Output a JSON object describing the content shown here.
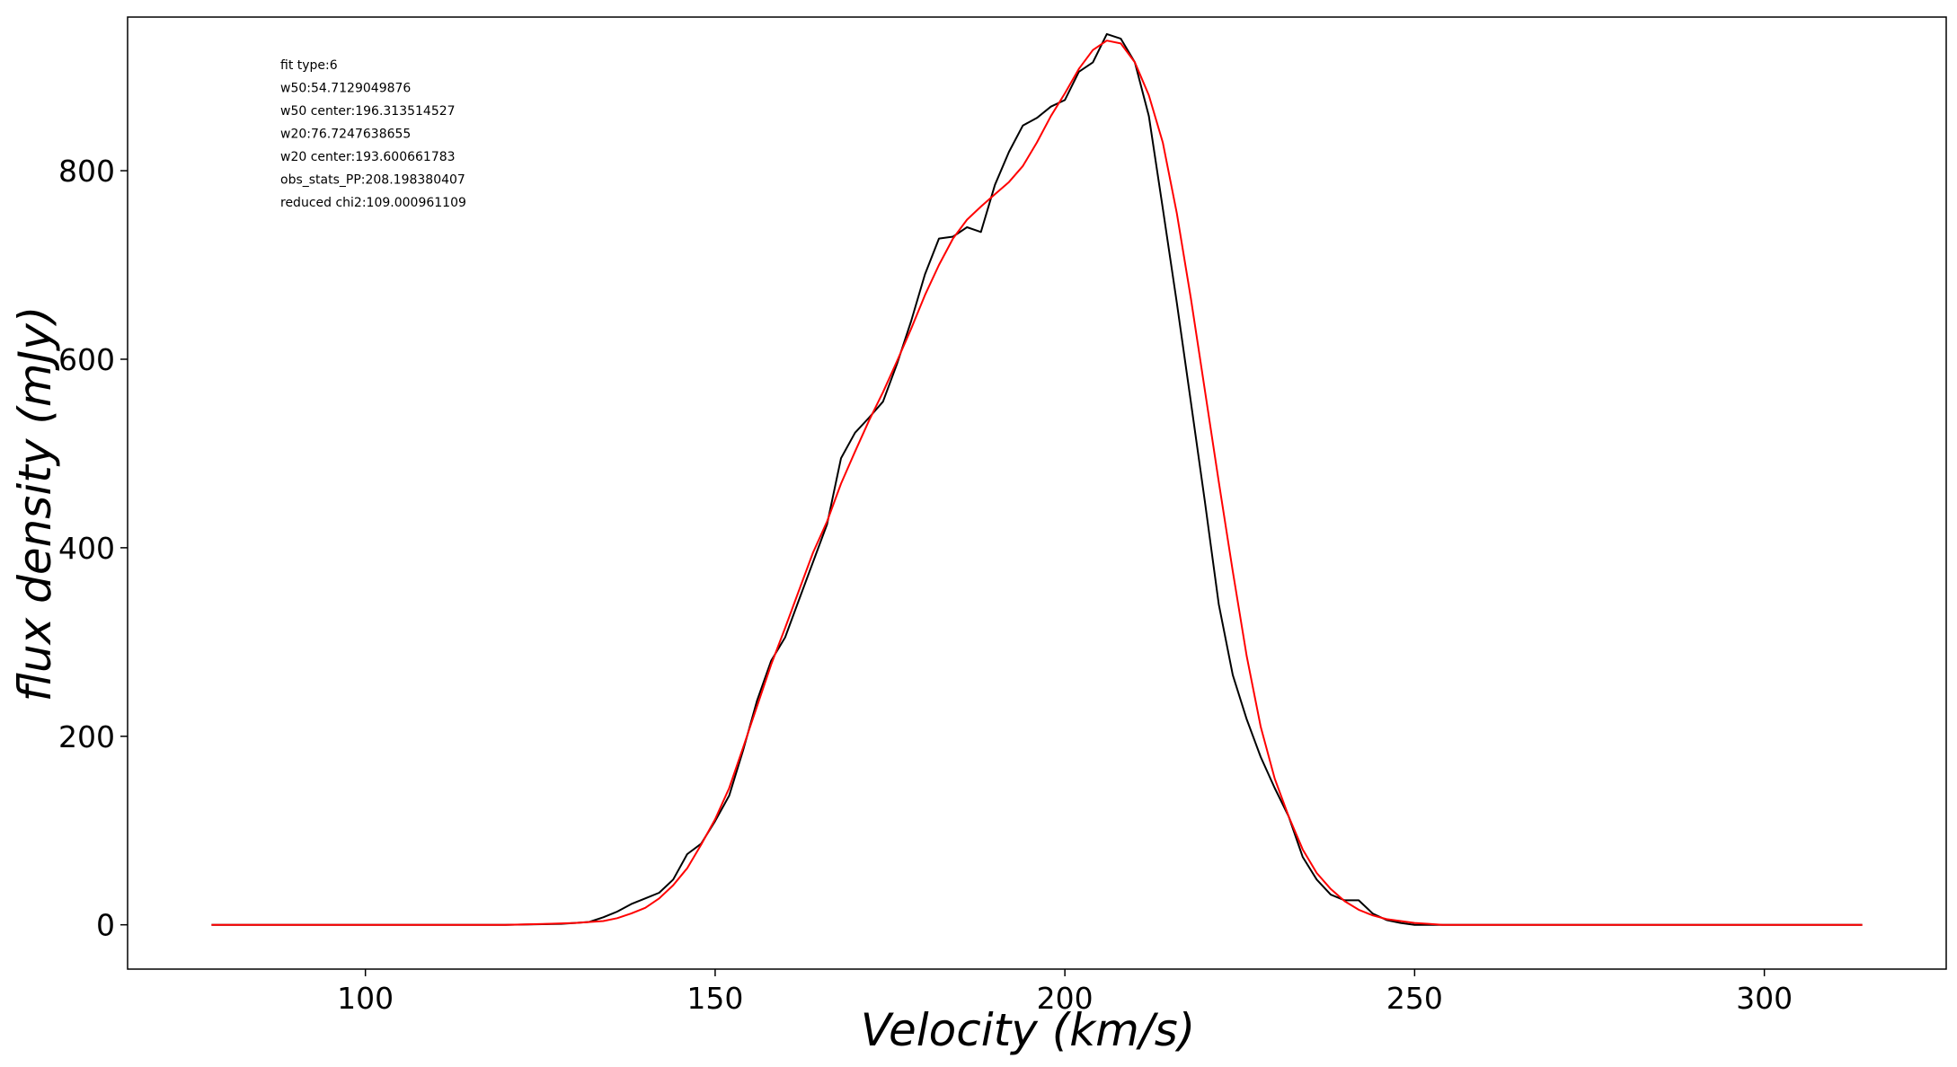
{
  "chart_data": {
    "type": "line",
    "title": "",
    "xlabel": "Velocity (km/s)",
    "ylabel": "flux density (mJy)",
    "xlim": [
      66,
      326
    ],
    "ylim": [
      -47,
      963
    ],
    "xticks": [
      100,
      150,
      200,
      250,
      300
    ],
    "yticks": [
      0,
      200,
      400,
      600,
      800
    ],
    "grid": false,
    "annotations": [
      "fit type:6",
      "w50:54.7129049876",
      "w50 center:196.313514527",
      "w20:76.7247638655",
      "w20 center:193.600661783",
      "obs_stats_PP:208.198380407",
      "reduced chi2:109.000961109"
    ],
    "series": [
      {
        "color": "#000000",
        "x": [
          78,
          100,
          120,
          128,
          130,
          132,
          134,
          136,
          138,
          140,
          142,
          144,
          146,
          148,
          150,
          152,
          154,
          156,
          158,
          160,
          162,
          164,
          166,
          168,
          170,
          172,
          174,
          176,
          178,
          180,
          182,
          184,
          186,
          188,
          190,
          192,
          194,
          196,
          198,
          200,
          202,
          204,
          206,
          208,
          210,
          212,
          214,
          216,
          218,
          220,
          222,
          224,
          226,
          228,
          230,
          232,
          234,
          236,
          238,
          240,
          242,
          244,
          246,
          248,
          250,
          252,
          254,
          256,
          260,
          270,
          290,
          314
        ],
        "y": [
          0,
          0,
          0,
          1,
          2,
          3,
          8,
          14,
          22,
          28,
          34,
          48,
          75,
          86,
          110,
          137,
          185,
          238,
          280,
          305,
          345,
          385,
          425,
          495,
          522,
          538,
          555,
          595,
          640,
          690,
          728,
          730,
          740,
          735,
          785,
          820,
          848,
          856,
          868,
          875,
          905,
          915,
          945,
          940,
          915,
          858,
          760,
          660,
          555,
          450,
          340,
          265,
          218,
          178,
          145,
          115,
          72,
          48,
          32,
          26,
          26,
          12,
          5,
          2,
          0,
          0,
          0,
          0,
          0,
          0,
          0,
          0
        ]
      },
      {
        "color": "#ff0000",
        "x": [
          78,
          100,
          120,
          126,
          130,
          134,
          136,
          138,
          140,
          142,
          144,
          146,
          148,
          150,
          152,
          154,
          156,
          158,
          160,
          162,
          164,
          166,
          168,
          170,
          172,
          174,
          176,
          178,
          180,
          182,
          184,
          186,
          188,
          190,
          192,
          194,
          196,
          198,
          200,
          202,
          204,
          206,
          208,
          210,
          212,
          214,
          216,
          218,
          220,
          222,
          224,
          226,
          228,
          230,
          232,
          234,
          236,
          238,
          240,
          242,
          244,
          246,
          248,
          250,
          252,
          254,
          258,
          264,
          280,
          314
        ],
        "y": [
          0,
          0,
          0,
          1,
          2,
          4,
          7,
          12,
          18,
          28,
          42,
          60,
          85,
          112,
          145,
          188,
          232,
          276,
          315,
          355,
          395,
          428,
          468,
          502,
          535,
          565,
          598,
          632,
          668,
          700,
          728,
          748,
          762,
          775,
          788,
          805,
          830,
          858,
          882,
          908,
          928,
          938,
          935,
          915,
          880,
          830,
          755,
          665,
          568,
          470,
          375,
          285,
          210,
          155,
          115,
          80,
          55,
          38,
          25,
          16,
          10,
          6,
          4,
          2,
          1,
          0,
          0,
          0,
          0,
          0
        ]
      }
    ]
  }
}
